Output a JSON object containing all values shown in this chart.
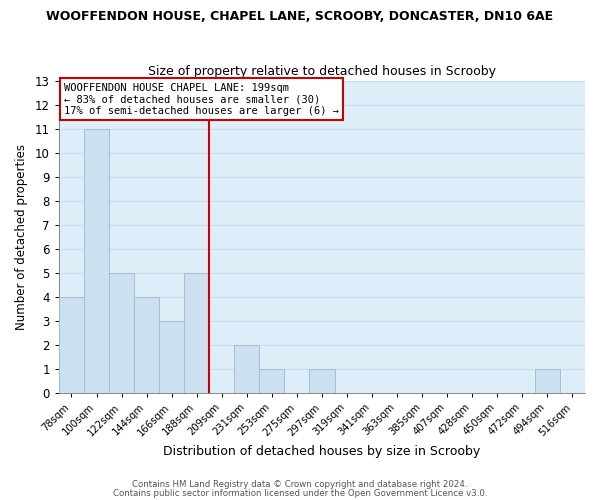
{
  "title": "WOOFFENDON HOUSE, CHAPEL LANE, SCROOBY, DONCASTER, DN10 6AE",
  "subtitle": "Size of property relative to detached houses in Scrooby",
  "xlabel": "Distribution of detached houses by size in Scrooby",
  "ylabel": "Number of detached properties",
  "bar_color": "#cde0f0",
  "bar_edgecolor": "#99bcd8",
  "categories": [
    "78sqm",
    "100sqm",
    "122sqm",
    "144sqm",
    "166sqm",
    "188sqm",
    "209sqm",
    "231sqm",
    "253sqm",
    "275sqm",
    "297sqm",
    "319sqm",
    "341sqm",
    "363sqm",
    "385sqm",
    "407sqm",
    "428sqm",
    "450sqm",
    "472sqm",
    "494sqm",
    "516sqm"
  ],
  "values": [
    4,
    11,
    5,
    4,
    3,
    5,
    0,
    2,
    1,
    0,
    1,
    0,
    0,
    0,
    0,
    0,
    0,
    0,
    0,
    1,
    0
  ],
  "vline_x_index": 6,
  "vline_color": "#cc0000",
  "ylim": [
    0,
    13
  ],
  "yticks": [
    0,
    1,
    2,
    3,
    4,
    5,
    6,
    7,
    8,
    9,
    10,
    11,
    12,
    13
  ],
  "annotation_title": "WOOFFENDON HOUSE CHAPEL LANE: 199sqm",
  "annotation_line1": "← 83% of detached houses are smaller (30)",
  "annotation_line2": "17% of semi-detached houses are larger (6) →",
  "annotation_box_color": "#ffffff",
  "annotation_box_edgecolor": "#cc0000",
  "grid_color": "#c8ddf0",
  "background_color": "#ddeef8",
  "footer1": "Contains HM Land Registry data © Crown copyright and database right 2024.",
  "footer2": "Contains public sector information licensed under the Open Government Licence v3.0."
}
